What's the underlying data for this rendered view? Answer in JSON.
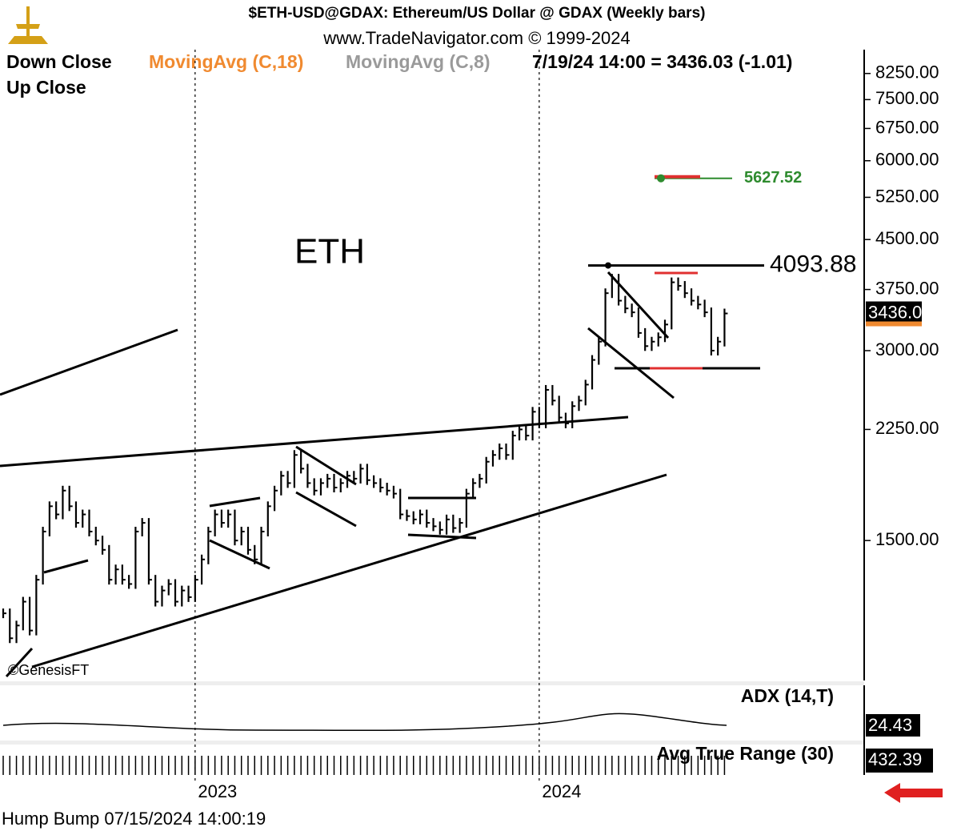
{
  "chart_data": {
    "type": "bar",
    "title": "$ETH-USD@GDAX:  Ethereum/US Dollar @ GDAX  (Weekly bars)",
    "subtitle": "www.TradeNavigator.com © 1999-2024",
    "legend_labels": [
      "Down Close",
      "Up Close",
      "MovingAvg (C,18)",
      "MovingAvg (C,8)"
    ],
    "quote": "7/19/24 14:00 = 3436.03 (-1.01)",
    "symbol_label": "ETH",
    "copyright": "©GenesisFT",
    "log_scale": true,
    "ylim": [
      900,
      9000
    ],
    "yticks": [
      {
        "value": 1500,
        "label": "1500.00"
      },
      {
        "value": 2250,
        "label": "2250.00"
      },
      {
        "value": 3000,
        "label": "3000.00"
      },
      {
        "value": 3750,
        "label": "3750.00"
      },
      {
        "value": 4500,
        "label": "4500.00"
      },
      {
        "value": 5250,
        "label": "5250.00"
      },
      {
        "value": 6000,
        "label": "6000.00"
      },
      {
        "value": 6750,
        "label": "6750.00"
      },
      {
        "value": 7500,
        "label": "7500.00"
      },
      {
        "value": 8250,
        "label": "8250.00"
      }
    ],
    "xticks": [
      {
        "value": 29,
        "label": "2023"
      },
      {
        "value": 81,
        "label": "2024"
      }
    ],
    "categories": [
      null,
      null,
      null,
      null,
      null,
      null,
      null,
      null,
      null,
      null,
      null,
      null,
      null,
      null,
      null,
      null,
      null,
      null,
      null,
      null,
      null,
      null,
      null,
      null,
      null,
      null,
      null,
      null,
      null,
      null,
      null,
      null,
      null,
      null,
      null,
      null,
      null,
      null,
      null,
      null,
      null,
      null,
      null,
      null,
      null,
      null,
      null,
      null,
      null,
      null,
      null,
      null,
      null,
      null,
      null,
      null,
      null,
      null,
      null,
      null,
      null,
      null,
      null,
      null,
      null,
      null,
      null,
      null,
      null,
      null,
      null,
      null,
      null,
      null,
      null,
      null,
      null,
      null,
      null,
      null,
      null,
      null,
      null,
      null,
      null,
      null,
      null,
      null,
      null,
      null,
      null,
      null,
      null,
      null,
      null,
      null,
      null,
      null,
      null,
      null,
      null,
      null,
      null,
      null,
      null,
      null,
      null,
      null,
      null,
      null
    ],
    "series": [
      {
        "name": "Close",
        "color": "#000000",
        "values": [
          1150,
          1050,
          1100,
          1200,
          1080,
          1300,
          1550,
          1700,
          1650,
          1800,
          1700,
          1600,
          1650,
          1550,
          1500,
          1450,
          1300,
          1350,
          1300,
          1280,
          1550,
          1600,
          1300,
          1200,
          1250,
          1280,
          1200,
          1250,
          1220,
          1300,
          1400,
          1550,
          1650,
          1600,
          1650,
          1500,
          1550,
          1450,
          1400,
          1550,
          1700,
          1800,
          1900,
          1850,
          2050,
          1950,
          1850,
          1800,
          1850,
          1880,
          1820,
          1850,
          1900,
          1880,
          1950,
          1870,
          1850,
          1820,
          1800,
          1780,
          1650,
          1640,
          1620,
          1650,
          1600,
          1580,
          1560,
          1620,
          1570,
          1600,
          1780,
          1850,
          1880,
          2000,
          2050,
          2100,
          2050,
          2200,
          2250,
          2200,
          2400,
          2300,
          2600,
          2500,
          2350,
          2300,
          2450,
          2500,
          2650,
          2900,
          3100,
          3700,
          3900,
          3600,
          3500,
          3450,
          3200,
          3050,
          3100,
          3150,
          3300,
          3850,
          3800,
          3700,
          3600,
          3550,
          3450,
          3000,
          3100,
          3436.03
        ]
      }
    ],
    "last_price": 3436.03,
    "levels": [
      {
        "value": 4093.88,
        "color": "#000000"
      },
      {
        "value": 5627.52,
        "color": "#2e8b2e"
      }
    ],
    "adx_label": "ADX (14,T)",
    "adx_value": 24.43,
    "atr_label": "Avg True Range (30)",
    "atr_value": 432.39,
    "footer": "Hump Bump   07/15/2024 14:00:19"
  }
}
